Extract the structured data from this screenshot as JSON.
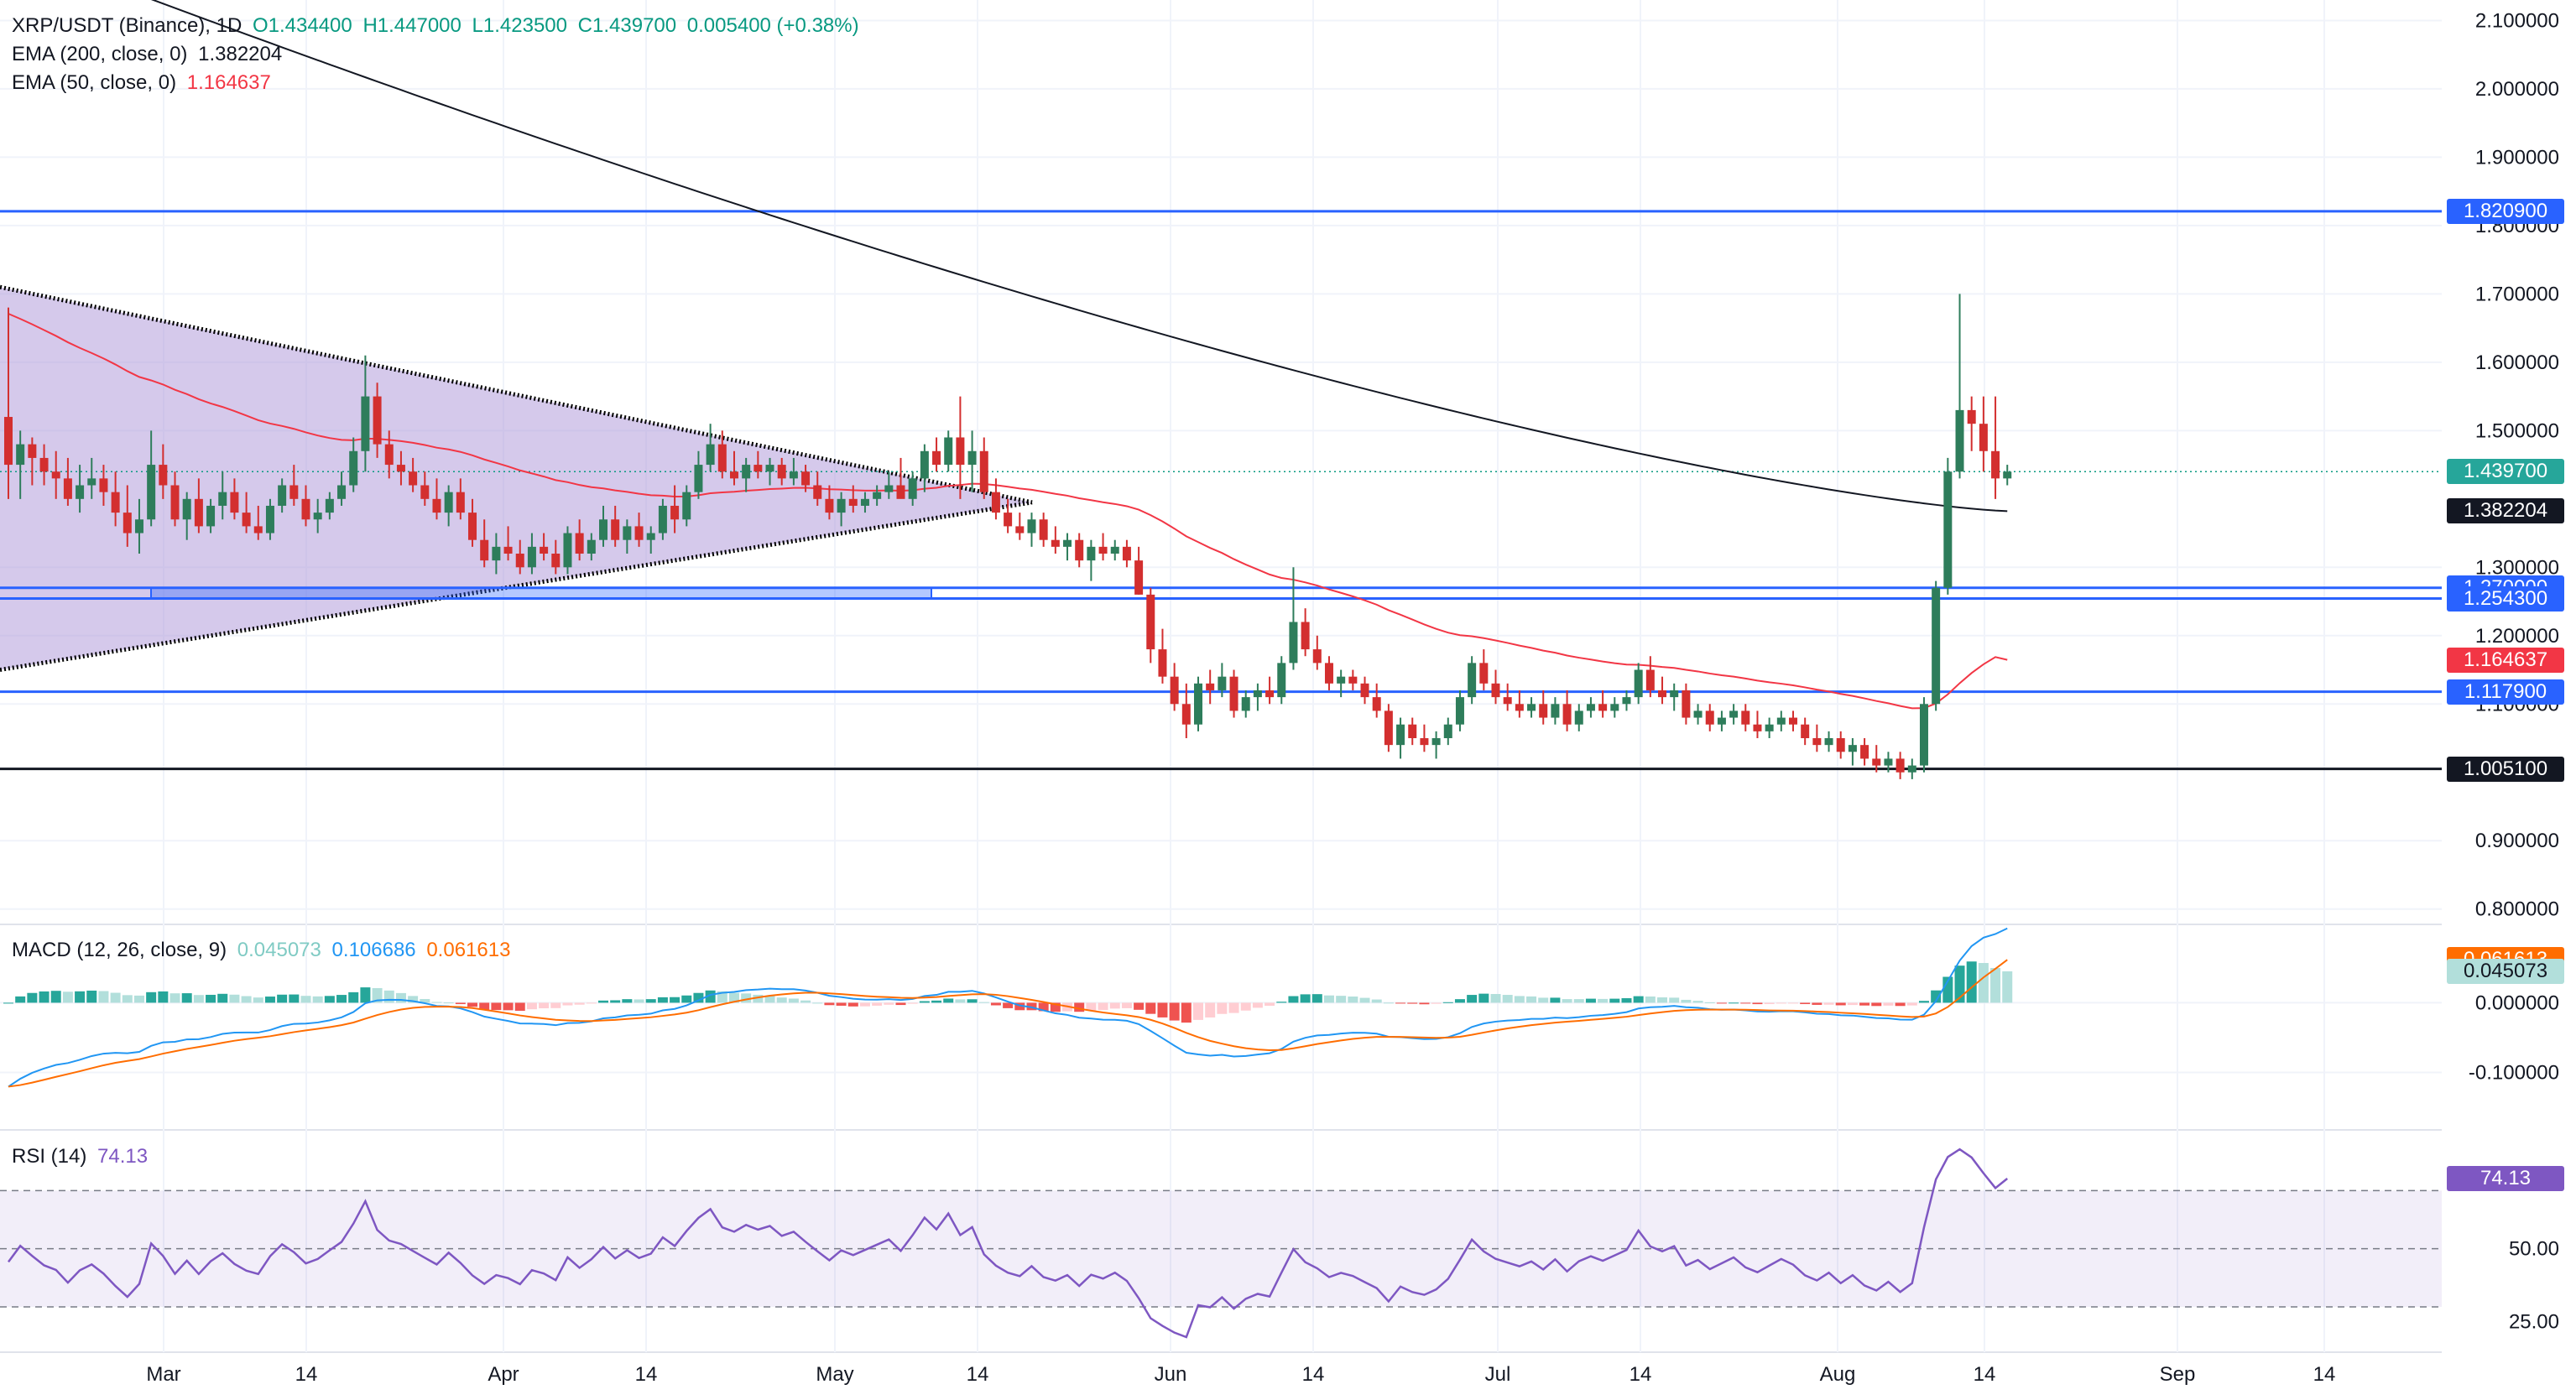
{
  "header": {
    "symbol": "XRP/USDT (Binance), 1D",
    "open": "O1.434400",
    "high": "H1.447000",
    "low": "L1.423500",
    "close": "C1.439700",
    "change": "0.005400 (+0.38%)",
    "ema200_label": "EMA (200, close, 0)",
    "ema200_value": "1.382204",
    "ema50_label": "EMA (50, close, 0)",
    "ema50_value": "1.164637"
  },
  "macd_legend": {
    "label": "MACD (12, 26, close, 9)",
    "histogram": "0.045073",
    "macd": "0.106686",
    "signal": "0.061613"
  },
  "rsi_legend": {
    "label": "RSI (14)",
    "value": "74.13"
  },
  "colors": {
    "up": "#26a69a",
    "up_body": "#2e7d5b",
    "down": "#ef5350",
    "down_body": "#d32f2f",
    "ema200": "#131722",
    "ema50": "#f23645",
    "level_line": "#2962ff",
    "triangle_fill": "#b39ddb",
    "macd_line": "#2196f3",
    "signal_line": "#ff6d00",
    "rsi_line": "#7e57c2"
  },
  "price_tags": [
    {
      "id": "r1820",
      "text": "1.820900",
      "value": 1.8209,
      "color": "#2962ff"
    },
    {
      "id": "close",
      "text": "1.439700",
      "value": 1.4397,
      "color": "#26a69a"
    },
    {
      "id": "ema200",
      "text": "1.382204",
      "value": 1.382204,
      "color": "#131722"
    },
    {
      "id": "r1270",
      "text": "1.270000",
      "value": 1.27,
      "color": "#2962ff"
    },
    {
      "id": "r1254",
      "text": "1.254300",
      "value": 1.2543,
      "color": "#2962ff"
    },
    {
      "id": "ema50",
      "text": "1.164637",
      "value": 1.164637,
      "color": "#f23645"
    },
    {
      "id": "s1117",
      "text": "1.117900",
      "value": 1.1179,
      "color": "#2962ff"
    },
    {
      "id": "s1005",
      "text": "1.005100",
      "value": 1.0051,
      "color": "#131722"
    }
  ],
  "macd_tags": [
    {
      "id": "macd",
      "text": "0.061613",
      "value": 0.061613,
      "color": "#ff6d00"
    },
    {
      "id": "hist",
      "text": "0.045073",
      "value": 0.045073,
      "color": "#b2dfdb",
      "text_color": "#131722"
    }
  ],
  "rsi_tag": {
    "text": "74.13",
    "value": 74.13,
    "color": "#7e57c2"
  },
  "chart_data": {
    "type": "candlestick",
    "symbol": "XRP/USDT",
    "timeframe": "1D",
    "y_axis_ticks": [
      "2.100000",
      "2.000000",
      "1.900000",
      "1.800000",
      "1.700000",
      "1.600000",
      "1.500000",
      "1.300000",
      "1.200000",
      "1.100000",
      "0.900000",
      "0.800000"
    ],
    "y_axis_values": [
      2.1,
      2.0,
      1.9,
      1.8,
      1.7,
      1.6,
      1.5,
      1.3,
      1.2,
      1.1,
      0.9,
      0.8
    ],
    "ylim": [
      0.78,
      2.13
    ],
    "x_axis_ticks": [
      "Mar",
      "14",
      "Apr",
      "14",
      "May",
      "14",
      "Jun",
      "14",
      "Jul",
      "14",
      "Aug",
      "14",
      "Sep",
      "14"
    ],
    "horizontal_levels": [
      1.8209,
      1.27,
      1.2543,
      1.1179,
      1.0051
    ],
    "candles": [
      [
        1.52,
        1.68,
        1.4,
        1.45
      ],
      [
        1.45,
        1.5,
        1.4,
        1.48
      ],
      [
        1.48,
        1.49,
        1.42,
        1.46
      ],
      [
        1.46,
        1.48,
        1.42,
        1.44
      ],
      [
        1.44,
        1.47,
        1.4,
        1.43
      ],
      [
        1.43,
        1.46,
        1.39,
        1.4
      ],
      [
        1.4,
        1.45,
        1.38,
        1.42
      ],
      [
        1.42,
        1.46,
        1.4,
        1.43
      ],
      [
        1.43,
        1.45,
        1.39,
        1.41
      ],
      [
        1.41,
        1.44,
        1.36,
        1.38
      ],
      [
        1.38,
        1.42,
        1.33,
        1.35
      ],
      [
        1.35,
        1.4,
        1.32,
        1.37
      ],
      [
        1.37,
        1.5,
        1.36,
        1.45
      ],
      [
        1.45,
        1.48,
        1.4,
        1.42
      ],
      [
        1.42,
        1.44,
        1.36,
        1.37
      ],
      [
        1.37,
        1.41,
        1.34,
        1.4
      ],
      [
        1.4,
        1.43,
        1.35,
        1.36
      ],
      [
        1.36,
        1.4,
        1.35,
        1.39
      ],
      [
        1.39,
        1.44,
        1.37,
        1.41
      ],
      [
        1.41,
        1.43,
        1.37,
        1.38
      ],
      [
        1.38,
        1.41,
        1.35,
        1.36
      ],
      [
        1.36,
        1.39,
        1.34,
        1.35
      ],
      [
        1.35,
        1.4,
        1.34,
        1.39
      ],
      [
        1.39,
        1.43,
        1.38,
        1.42
      ],
      [
        1.42,
        1.45,
        1.39,
        1.4
      ],
      [
        1.4,
        1.42,
        1.36,
        1.37
      ],
      [
        1.37,
        1.4,
        1.35,
        1.38
      ],
      [
        1.38,
        1.41,
        1.37,
        1.4
      ],
      [
        1.4,
        1.44,
        1.39,
        1.42
      ],
      [
        1.42,
        1.49,
        1.41,
        1.47
      ],
      [
        1.47,
        1.61,
        1.44,
        1.55
      ],
      [
        1.55,
        1.57,
        1.46,
        1.48
      ],
      [
        1.48,
        1.5,
        1.43,
        1.45
      ],
      [
        1.45,
        1.47,
        1.42,
        1.44
      ],
      [
        1.44,
        1.46,
        1.41,
        1.42
      ],
      [
        1.42,
        1.44,
        1.39,
        1.4
      ],
      [
        1.4,
        1.43,
        1.37,
        1.38
      ],
      [
        1.38,
        1.42,
        1.36,
        1.41
      ],
      [
        1.41,
        1.43,
        1.37,
        1.38
      ],
      [
        1.38,
        1.4,
        1.33,
        1.34
      ],
      [
        1.34,
        1.37,
        1.3,
        1.31
      ],
      [
        1.31,
        1.35,
        1.29,
        1.33
      ],
      [
        1.33,
        1.36,
        1.31,
        1.32
      ],
      [
        1.32,
        1.34,
        1.29,
        1.3
      ],
      [
        1.3,
        1.35,
        1.29,
        1.33
      ],
      [
        1.33,
        1.35,
        1.31,
        1.32
      ],
      [
        1.32,
        1.34,
        1.29,
        1.3
      ],
      [
        1.3,
        1.36,
        1.29,
        1.35
      ],
      [
        1.35,
        1.37,
        1.31,
        1.32
      ],
      [
        1.32,
        1.35,
        1.31,
        1.34
      ],
      [
        1.34,
        1.39,
        1.33,
        1.37
      ],
      [
        1.37,
        1.39,
        1.33,
        1.34
      ],
      [
        1.34,
        1.37,
        1.32,
        1.36
      ],
      [
        1.36,
        1.38,
        1.33,
        1.34
      ],
      [
        1.34,
        1.36,
        1.32,
        1.35
      ],
      [
        1.35,
        1.4,
        1.34,
        1.39
      ],
      [
        1.39,
        1.42,
        1.35,
        1.37
      ],
      [
        1.37,
        1.42,
        1.36,
        1.41
      ],
      [
        1.41,
        1.47,
        1.4,
        1.45
      ],
      [
        1.45,
        1.51,
        1.44,
        1.48
      ],
      [
        1.48,
        1.5,
        1.43,
        1.44
      ],
      [
        1.44,
        1.47,
        1.42,
        1.43
      ],
      [
        1.43,
        1.46,
        1.41,
        1.45
      ],
      [
        1.45,
        1.47,
        1.43,
        1.44
      ],
      [
        1.44,
        1.46,
        1.42,
        1.45
      ],
      [
        1.45,
        1.46,
        1.42,
        1.43
      ],
      [
        1.43,
        1.46,
        1.42,
        1.44
      ],
      [
        1.44,
        1.45,
        1.41,
        1.42
      ],
      [
        1.42,
        1.44,
        1.39,
        1.4
      ],
      [
        1.4,
        1.42,
        1.37,
        1.38
      ],
      [
        1.38,
        1.41,
        1.36,
        1.4
      ],
      [
        1.4,
        1.42,
        1.38,
        1.39
      ],
      [
        1.39,
        1.41,
        1.38,
        1.4
      ],
      [
        1.4,
        1.42,
        1.39,
        1.41
      ],
      [
        1.41,
        1.44,
        1.4,
        1.42
      ],
      [
        1.42,
        1.46,
        1.41,
        1.4
      ],
      [
        1.4,
        1.44,
        1.39,
        1.43
      ],
      [
        1.43,
        1.48,
        1.41,
        1.47
      ],
      [
        1.47,
        1.49,
        1.44,
        1.45
      ],
      [
        1.45,
        1.5,
        1.44,
        1.49
      ],
      [
        1.49,
        1.55,
        1.4,
        1.45
      ],
      [
        1.45,
        1.5,
        1.41,
        1.47
      ],
      [
        1.47,
        1.49,
        1.4,
        1.41
      ],
      [
        1.41,
        1.43,
        1.37,
        1.38
      ],
      [
        1.38,
        1.4,
        1.35,
        1.36
      ],
      [
        1.36,
        1.38,
        1.34,
        1.35
      ],
      [
        1.35,
        1.38,
        1.33,
        1.37
      ],
      [
        1.37,
        1.38,
        1.33,
        1.34
      ],
      [
        1.34,
        1.36,
        1.32,
        1.33
      ],
      [
        1.33,
        1.35,
        1.31,
        1.34
      ],
      [
        1.34,
        1.35,
        1.3,
        1.31
      ],
      [
        1.31,
        1.34,
        1.28,
        1.33
      ],
      [
        1.33,
        1.35,
        1.31,
        1.32
      ],
      [
        1.32,
        1.34,
        1.31,
        1.33
      ],
      [
        1.33,
        1.34,
        1.3,
        1.31
      ],
      [
        1.31,
        1.33,
        1.26,
        1.26
      ],
      [
        1.26,
        1.27,
        1.16,
        1.18
      ],
      [
        1.18,
        1.21,
        1.13,
        1.14
      ],
      [
        1.14,
        1.16,
        1.09,
        1.1
      ],
      [
        1.1,
        1.13,
        1.05,
        1.07
      ],
      [
        1.07,
        1.14,
        1.06,
        1.13
      ],
      [
        1.13,
        1.15,
        1.1,
        1.12
      ],
      [
        1.12,
        1.16,
        1.11,
        1.14
      ],
      [
        1.14,
        1.15,
        1.08,
        1.09
      ],
      [
        1.09,
        1.12,
        1.08,
        1.11
      ],
      [
        1.11,
        1.13,
        1.09,
        1.12
      ],
      [
        1.12,
        1.14,
        1.1,
        1.11
      ],
      [
        1.11,
        1.17,
        1.1,
        1.16
      ],
      [
        1.16,
        1.3,
        1.15,
        1.22
      ],
      [
        1.22,
        1.24,
        1.17,
        1.18
      ],
      [
        1.18,
        1.2,
        1.15,
        1.16
      ],
      [
        1.16,
        1.17,
        1.12,
        1.13
      ],
      [
        1.13,
        1.15,
        1.11,
        1.14
      ],
      [
        1.14,
        1.15,
        1.12,
        1.13
      ],
      [
        1.13,
        1.14,
        1.1,
        1.11
      ],
      [
        1.11,
        1.13,
        1.08,
        1.09
      ],
      [
        1.09,
        1.1,
        1.03,
        1.04
      ],
      [
        1.04,
        1.08,
        1.02,
        1.07
      ],
      [
        1.07,
        1.08,
        1.04,
        1.05
      ],
      [
        1.05,
        1.07,
        1.03,
        1.04
      ],
      [
        1.04,
        1.06,
        1.02,
        1.05
      ],
      [
        1.05,
        1.08,
        1.04,
        1.07
      ],
      [
        1.07,
        1.12,
        1.06,
        1.11
      ],
      [
        1.11,
        1.17,
        1.1,
        1.16
      ],
      [
        1.16,
        1.18,
        1.12,
        1.13
      ],
      [
        1.13,
        1.15,
        1.1,
        1.11
      ],
      [
        1.11,
        1.13,
        1.09,
        1.1
      ],
      [
        1.1,
        1.12,
        1.08,
        1.09
      ],
      [
        1.09,
        1.11,
        1.08,
        1.1
      ],
      [
        1.1,
        1.12,
        1.07,
        1.08
      ],
      [
        1.08,
        1.11,
        1.07,
        1.1
      ],
      [
        1.1,
        1.12,
        1.06,
        1.07
      ],
      [
        1.07,
        1.1,
        1.06,
        1.09
      ],
      [
        1.09,
        1.11,
        1.08,
        1.1
      ],
      [
        1.1,
        1.12,
        1.08,
        1.09
      ],
      [
        1.09,
        1.11,
        1.08,
        1.1
      ],
      [
        1.1,
        1.12,
        1.09,
        1.11
      ],
      [
        1.11,
        1.16,
        1.1,
        1.15
      ],
      [
        1.15,
        1.17,
        1.11,
        1.12
      ],
      [
        1.12,
        1.14,
        1.1,
        1.11
      ],
      [
        1.11,
        1.13,
        1.09,
        1.12
      ],
      [
        1.12,
        1.13,
        1.07,
        1.08
      ],
      [
        1.08,
        1.1,
        1.07,
        1.09
      ],
      [
        1.09,
        1.1,
        1.06,
        1.07
      ],
      [
        1.07,
        1.09,
        1.06,
        1.08
      ],
      [
        1.08,
        1.1,
        1.07,
        1.09
      ],
      [
        1.09,
        1.1,
        1.06,
        1.07
      ],
      [
        1.07,
        1.09,
        1.05,
        1.06
      ],
      [
        1.06,
        1.08,
        1.05,
        1.07
      ],
      [
        1.07,
        1.09,
        1.06,
        1.08
      ],
      [
        1.08,
        1.09,
        1.06,
        1.07
      ],
      [
        1.07,
        1.08,
        1.04,
        1.05
      ],
      [
        1.05,
        1.07,
        1.03,
        1.04
      ],
      [
        1.04,
        1.06,
        1.03,
        1.05
      ],
      [
        1.05,
        1.06,
        1.02,
        1.03
      ],
      [
        1.03,
        1.05,
        1.01,
        1.04
      ],
      [
        1.04,
        1.05,
        1.01,
        1.02
      ],
      [
        1.02,
        1.04,
        1.0,
        1.01
      ],
      [
        1.01,
        1.03,
        1.0,
        1.02
      ],
      [
        1.02,
        1.03,
        0.99,
        1.0
      ],
      [
        1.0,
        1.02,
        0.99,
        1.01
      ],
      [
        1.01,
        1.11,
        1.0,
        1.1
      ],
      [
        1.1,
        1.28,
        1.09,
        1.27
      ],
      [
        1.27,
        1.46,
        1.26,
        1.44
      ],
      [
        1.44,
        1.7,
        1.43,
        1.53
      ],
      [
        1.53,
        1.55,
        1.47,
        1.51
      ],
      [
        1.51,
        1.55,
        1.44,
        1.47
      ],
      [
        1.47,
        1.55,
        1.4,
        1.43
      ],
      [
        1.43,
        1.45,
        1.42,
        1.44
      ]
    ],
    "ema200": {
      "start": 2.21,
      "end": 1.382204
    },
    "ema50_end": 1.164637,
    "triangle": {
      "upper_start": 1.71,
      "lower_start": 1.15,
      "apex": 1.395
    },
    "rect_zone": {
      "low": 1.2543,
      "high": 1.27
    },
    "macd": {
      "y_axis_ticks": [
        "0.000000",
        "-0.100000"
      ],
      "y_axis_values": [
        0.0,
        -0.1
      ],
      "ylim": [
        -0.18,
        0.11
      ],
      "legend": {
        "histogram": 0.045073,
        "macd": 0.106686,
        "signal": 0.061613
      }
    },
    "rsi": {
      "y_axis_ticks": [
        "50.00",
        "25.00"
      ],
      "y_axis_values": [
        50,
        25
      ],
      "ylim": [
        15,
        90
      ],
      "band": [
        30,
        70
      ],
      "value": 74.13
    }
  }
}
